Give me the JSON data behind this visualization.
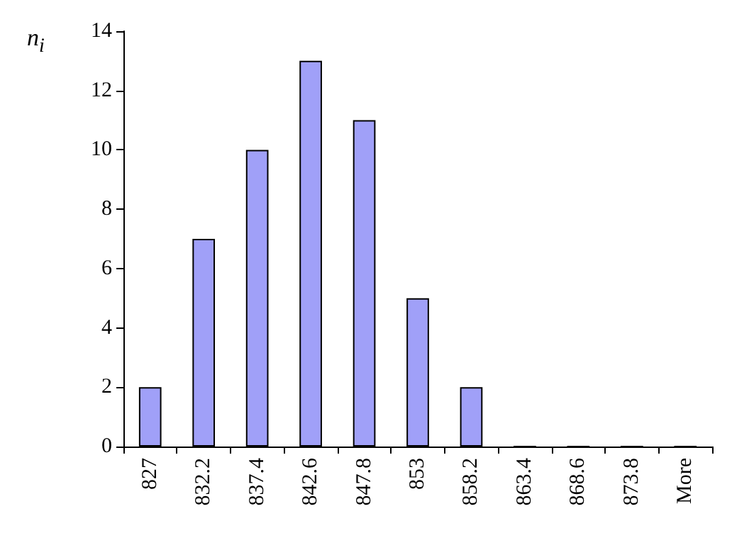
{
  "chart_data": {
    "type": "bar",
    "ylabel": "n$_{i}$",
    "categories": [
      "827",
      "832.2",
      "837.4",
      "842.6",
      "847.8",
      "853",
      "858.2",
      "863.4",
      "868.6",
      "873.8",
      "More"
    ],
    "values": [
      2,
      7,
      10,
      13,
      11,
      5,
      2,
      0,
      0,
      0,
      0
    ],
    "color": "#a0a0f8",
    "ylim": [
      0,
      14
    ],
    "yticks": [
      0,
      2,
      4,
      6,
      8,
      10,
      12,
      14
    ],
    "grid": false
  }
}
